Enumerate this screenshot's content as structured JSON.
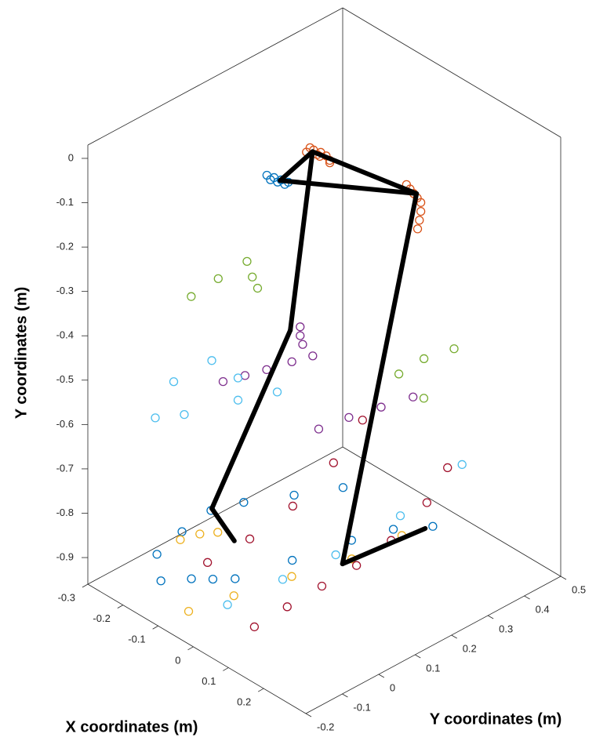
{
  "chart_data": {
    "type": "scatter3d",
    "xlabel": "X coordinates (m)",
    "ylabel": "Y coordinates (m)",
    "zlabel": "Y coordinates (m)",
    "xlim": [
      -0.3,
      0.32
    ],
    "ylim": [
      -0.96,
      0.03
    ],
    "zlim": [
      -0.2,
      0.5
    ],
    "xticks": [
      -0.3,
      -0.2,
      -0.1,
      0,
      0.1,
      0.2
    ],
    "yticks": [
      -0.9,
      -0.8,
      -0.7,
      -0.6,
      -0.5,
      -0.4,
      -0.3,
      -0.2,
      -0.1,
      0
    ],
    "zticks": [
      -0.2,
      -0.1,
      0,
      0.1,
      0.2,
      0.3,
      0.4,
      0.5
    ],
    "skeleton": {
      "color": "#000000",
      "x": [
        -0.013,
        -0.04,
        0.144,
        -0.013,
        -0.04,
        -0.144,
        -0.166,
        null,
        0.144,
        0.038,
        0.061
      ],
      "y": [
        0,
        -0.05,
        -0.08,
        0,
        -0.4,
        -0.8,
        -0.92,
        null,
        -0.08,
        -0.92,
        -0.92
      ],
      "z": [
        0.14,
        0.077,
        0.274,
        0.14,
        0.105,
        -0.01,
        0.073,
        null,
        0.274,
        0.173,
        0.378
      ]
    },
    "series": [
      {
        "color": "#d95319",
        "x": [
          -0.02,
          -0.015,
          -0.01,
          -0.005,
          0.0,
          0.005,
          0.01,
          0.005,
          -0.008,
          0.13,
          0.135,
          0.14,
          0.145,
          0.15,
          0.15,
          0.148,
          0.145
        ],
        "y": [
          0.0,
          0.01,
          0.005,
          -0.005,
          0.0,
          -0.01,
          -0.02,
          -0.03,
          -0.015,
          -0.06,
          -0.07,
          -0.08,
          -0.09,
          -0.1,
          -0.12,
          -0.14,
          -0.16
        ],
        "z": [
          0.13,
          0.135,
          0.14,
          0.145,
          0.15,
          0.16,
          0.165,
          0.17,
          0.155,
          0.26,
          0.265,
          0.27,
          0.275,
          0.28,
          0.28,
          0.278,
          0.276
        ]
      },
      {
        "color": "#0072bd",
        "x": [
          -0.06,
          -0.055,
          -0.05,
          -0.045,
          -0.04,
          -0.035,
          -0.03,
          -0.176,
          -0.14,
          -0.11,
          -0.081,
          -0.05,
          -0.02,
          0.02,
          0.066,
          -0.237,
          -0.26,
          -0.274,
          -0.25,
          -0.2,
          -0.153
        ],
        "y": [
          -0.04,
          -0.05,
          -0.045,
          -0.055,
          -0.05,
          -0.06,
          -0.055,
          -0.93,
          -0.93,
          -0.93,
          -0.93,
          -0.93,
          -0.93,
          -0.92,
          -0.92,
          -0.92,
          -0.92,
          -0.92,
          -0.92,
          -0.92,
          -0.92
        ],
        "z": [
          0.06,
          0.065,
          0.07,
          0.075,
          0.08,
          0.085,
          0.09,
          -0.119,
          -0.07,
          -0.04,
          -0.007,
          0.12,
          0.254,
          0.33,
          0.394,
          -0.071,
          0.02,
          0.113,
          0.18,
          0.27,
          0.359
        ]
      },
      {
        "color": "#edb120",
        "x": [
          -0.062,
          -0.04,
          -0.01,
          0.027,
          0.036,
          -0.242,
          -0.23,
          -0.21
        ],
        "y": [
          -0.93,
          -0.93,
          -0.93,
          -0.93,
          -0.93,
          -0.92,
          -0.92,
          -0.92
        ],
        "z": [
          -0.153,
          -0.05,
          0.08,
          0.209,
          0.338,
          -0.002,
          0.04,
          0.07
        ]
      },
      {
        "color": "#7e2f8e",
        "x": [
          -0.08,
          -0.06,
          -0.04,
          -0.02,
          -0.001,
          -0.013,
          -0.013,
          -0.01,
          0.046,
          0.08,
          0.12,
          0.16
        ],
        "y": [
          -0.47,
          -0.465,
          -0.46,
          -0.455,
          -0.45,
          -0.38,
          -0.4,
          -0.42,
          -0.58,
          -0.56,
          -0.54,
          -0.52
        ],
        "z": [
          -0.041,
          0.0,
          0.04,
          0.09,
          0.129,
          0.106,
          0.106,
          0.11,
          0.1,
          0.15,
          0.2,
          0.249
        ]
      },
      {
        "color": "#77ac30",
        "x": [
          -0.125,
          -0.1,
          -0.071,
          -0.058,
          -0.045,
          0.161,
          0.19,
          0.228,
          0.2
        ],
        "y": [
          -0.28,
          -0.25,
          -0.22,
          -0.25,
          -0.27,
          -0.45,
          -0.42,
          -0.4,
          -0.5
        ],
        "z": [
          -0.085,
          -0.035,
          0.016,
          0.018,
          0.02,
          0.209,
          0.25,
          0.296,
          0.24
        ]
      },
      {
        "color": "#4dbeee",
        "x": [
          -0.014,
          -0.08,
          -0.137,
          -0.18,
          -0.192,
          -0.15,
          -0.08,
          -0.026,
          -0.015,
          -0.005,
          0.04,
          0.084
        ],
        "y": [
          -0.5,
          -0.48,
          -0.46,
          -0.5,
          -0.57,
          -0.56,
          -0.53,
          -0.93,
          -0.93,
          -0.93,
          -0.88,
          -0.8
        ],
        "z": [
          0.044,
          0.0,
          -0.017,
          -0.08,
          -0.119,
          -0.08,
          0.0,
          -0.081,
          0.06,
          0.196,
          0.33,
          0.457
        ]
      },
      {
        "color": "#a2142f",
        "x": [
          0.066,
          0.06,
          0.055,
          0.05,
          0.045,
          0.043,
          0.05,
          -0.148,
          -0.15,
          -0.152,
          -0.15,
          -0.14
        ],
        "y": [
          -0.93,
          -0.93,
          -0.93,
          -0.93,
          -0.92,
          -0.88,
          -0.82,
          -0.92,
          -0.92,
          -0.9,
          -0.85,
          -0.78
        ],
        "z": [
          -0.096,
          0.0,
          0.1,
          0.2,
          0.3,
          0.4,
          0.45,
          -0.018,
          0.1,
          0.22,
          0.33,
          0.4
        ]
      }
    ]
  }
}
